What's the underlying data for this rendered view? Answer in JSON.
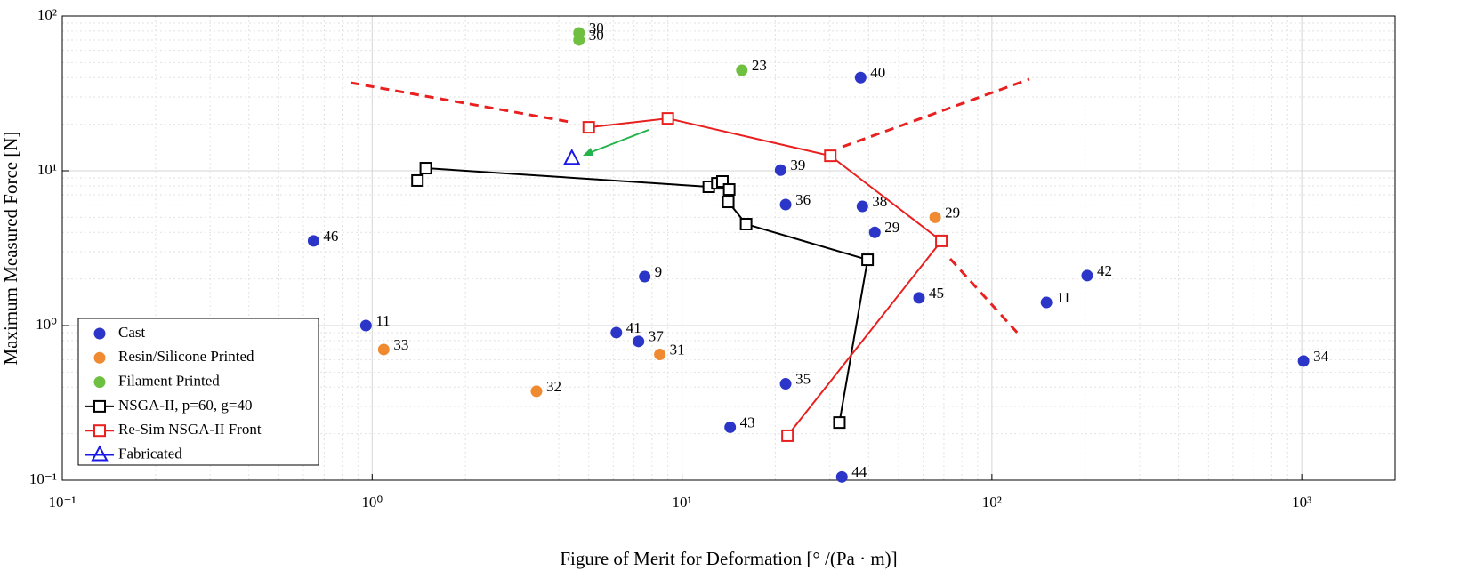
{
  "chart_data": {
    "type": "scatter",
    "xlabel": "Figure of Merit for Deformation [° /(Pa · m)]",
    "ylabel": "Maximum Measured Force [N]",
    "xscale": "log",
    "yscale": "log",
    "xlim": [
      0.1,
      2000
    ],
    "ylim": [
      0.1,
      100
    ],
    "xticks": [
      {
        "value": 0.1,
        "label": "10⁻¹"
      },
      {
        "value": 1,
        "label": "10⁰"
      },
      {
        "value": 10,
        "label": "10¹"
      },
      {
        "value": 100,
        "label": "10²"
      },
      {
        "value": 1000,
        "label": "10³"
      }
    ],
    "yticks": [
      {
        "value": 0.1,
        "label": "10⁻¹"
      },
      {
        "value": 1,
        "label": "10⁰"
      },
      {
        "value": 10,
        "label": "10¹"
      },
      {
        "value": 100,
        "label": "10²"
      }
    ],
    "grid": true,
    "minor_grid": true,
    "legend": "lower left",
    "series": [
      {
        "name": "Cast",
        "color": "#2b35c8",
        "marker": "circle",
        "line": false,
        "x": [
          37.7,
          20.8,
          21.6,
          38.2,
          41.9,
          0.647,
          7.58,
          203,
          58.2,
          150,
          0.955,
          6.14,
          7.24,
          1013,
          21.6,
          14.3,
          32.8
        ],
        "values": [
          40,
          10.1,
          6.05,
          5.89,
          4.0,
          3.52,
          2.07,
          2.1,
          1.51,
          1.41,
          1.0,
          0.9,
          0.79,
          0.59,
          0.42,
          0.22,
          0.105
        ],
        "labels": [
          "40",
          "39",
          "36",
          "38",
          "29",
          "46",
          "9",
          "42",
          "45",
          "11",
          "11",
          "41",
          "37",
          "34",
          "35",
          "43",
          "44"
        ]
      },
      {
        "name": "Resin/Silicone Printed",
        "color": "#f08a30",
        "marker": "circle",
        "line": false,
        "x": [
          65.6,
          1.09,
          8.48,
          3.39
        ],
        "values": [
          5.0,
          0.7,
          0.65,
          0.376
        ],
        "labels": [
          "29",
          "33",
          "31",
          "32"
        ]
      },
      {
        "name": "Filament Printed",
        "color": "#6fbf40",
        "marker": "circle",
        "line": false,
        "x": [
          4.65,
          4.65,
          15.6
        ],
        "values": [
          77.8,
          70,
          44.6
        ],
        "labels": [
          "30",
          "30",
          "23"
        ]
      },
      {
        "name": "NSGA-II, p=60, g=40",
        "color": "#000000",
        "marker": "square",
        "line": true,
        "x": [
          1.4,
          1.49,
          12.2,
          13.0,
          13.5,
          14.2,
          14.1,
          16.1,
          39.7,
          32.2
        ],
        "values": [
          8.65,
          10.4,
          7.88,
          8.3,
          8.53,
          7.57,
          6.29,
          4.52,
          2.66,
          0.236
        ]
      },
      {
        "name": "Re-Sim NSGA-II Front",
        "color": "#e8201f",
        "marker": "square",
        "line": true,
        "x": [
          5.0,
          9.0,
          30.1,
          68.7,
          21.9
        ],
        "values": [
          19.1,
          21.8,
          12.5,
          3.52,
          0.194
        ]
      },
      {
        "name": "Fabricated",
        "color": "#1a1ae6",
        "marker": "triangle",
        "line": false,
        "x": [
          4.41
        ],
        "values": [
          12.0
        ]
      }
    ]
  }
}
